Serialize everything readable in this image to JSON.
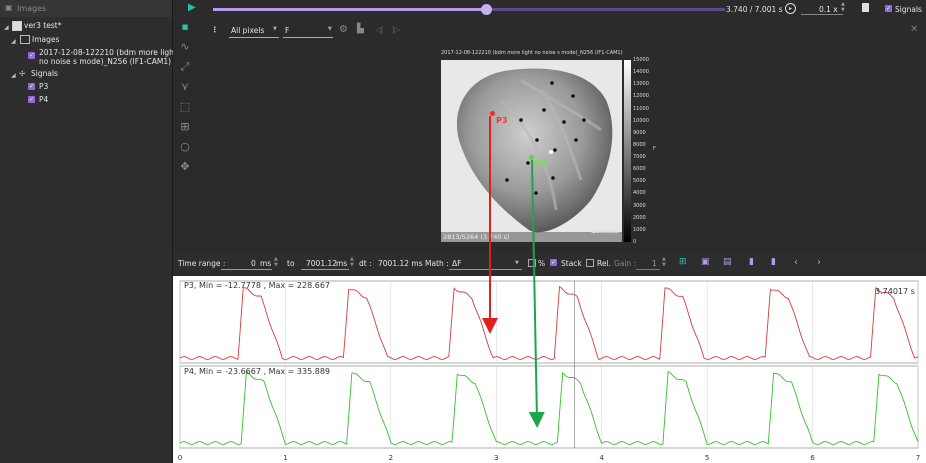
{
  "tree": {
    "header": "Images",
    "root": "ver3 test*",
    "images_label": "Images",
    "image_item_line1": "2017-12-08-122210 (bdm more light",
    "image_item_line2": "no noise s mode)_N256 (IF1-CAM1)",
    "signals_label": "Signals",
    "signal_items": [
      "P3",
      "P4"
    ]
  },
  "playback": {
    "time_readout": "3.740 / 7.001 s",
    "speed": "0.1 x",
    "signals_toggle": "Signals",
    "progress": 0.534
  },
  "viewer": {
    "mode_select": "All pixels",
    "channel_select": "F",
    "image_title": "2017-12-08-122210 (bdm more light no noise s mode)_N256 (IF1-CAM1)",
    "frame_readout": "2813/5264 (3.740 s)",
    "scale_label": "100 mm",
    "colorbar_ticks": [
      "15000",
      "14000",
      "13000",
      "12000",
      "11000",
      "10000",
      "9000",
      "8000",
      "7000",
      "6000",
      "5000",
      "4000",
      "3000",
      "2000",
      "1000",
      "0"
    ],
    "colorbar_unit": "F",
    "point_labels": [
      "P3",
      "P4"
    ]
  },
  "signal_toolbar": {
    "time_range_label": "Time range :",
    "from_value": "0",
    "from_unit": "ms",
    "to_label": "to",
    "to_value": "7001.12",
    "to_unit": "ms",
    "dt_label": "dt :",
    "dt_value": "7001.12 ms",
    "math_label": "Math :",
    "math_value": "ΔF",
    "percent_label": "%",
    "stack_label": "Stack",
    "rel_label": "Rel.",
    "gain_label": "Gain :",
    "gain_value": "1"
  },
  "chart_data": {
    "type": "line",
    "series": [
      {
        "name": "P3",
        "label": "P3, Min = -12.7778 , Max = 228.667",
        "color": "#d43c3c",
        "min": -12.7778,
        "max": 228.667,
        "peaks": [
          0.55,
          1.55,
          2.55,
          3.55,
          4.55,
          5.55,
          6.55
        ]
      },
      {
        "name": "P4",
        "label": "P4, Min = -23.6667 , Max = 335.889",
        "color": "#35c12a",
        "min": -23.6667,
        "max": 335.889,
        "peaks": [
          0.58,
          1.58,
          2.58,
          3.58,
          4.58,
          5.58,
          6.58
        ]
      }
    ],
    "time_cursor_label": "3.74017 s",
    "time_cursor": 3.74017,
    "xticks": [
      "0",
      "1",
      "2",
      "3",
      "4",
      "5",
      "6",
      "7"
    ],
    "xlim": [
      0,
      7
    ]
  }
}
